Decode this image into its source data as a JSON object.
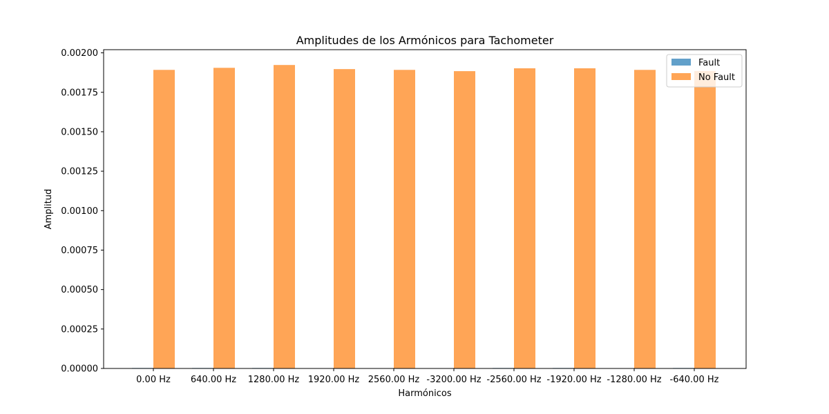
{
  "chart_data": {
    "type": "bar",
    "title": "Amplitudes de los Armónicos para Tachometer",
    "xlabel": "Harmónicos",
    "ylabel": "Amplitud",
    "categories": [
      "0.00 Hz",
      "640.00 Hz",
      "1280.00 Hz",
      "1920.00 Hz",
      "2560.00 Hz",
      "-3200.00 Hz",
      "-2560.00 Hz",
      "-1920.00 Hz",
      "-1280.00 Hz",
      "-640.00 Hz"
    ],
    "series": [
      {
        "name": "Fault",
        "color": "#1f77b4",
        "values": [
          3e-06,
          3e-06,
          3e-06,
          1e-06,
          1e-06,
          5e-07,
          3e-06,
          3e-06,
          1e-06,
          3e-06
        ]
      },
      {
        "name": "No Fault",
        "color": "#ff7f0e",
        "values": [
          0.001892,
          0.001905,
          0.001923,
          0.001897,
          0.001892,
          0.001884,
          0.001902,
          0.001902,
          0.001892,
          0.001885
        ]
      }
    ],
    "ylim": [
      0,
      0.00202
    ],
    "yticks": [
      0.0,
      0.00025,
      0.0005,
      0.00075,
      0.001,
      0.00125,
      0.0015,
      0.00175,
      0.002
    ],
    "ytick_labels": [
      "0.00000",
      "0.00025",
      "0.00050",
      "0.00075",
      "0.00100",
      "0.00125",
      "0.00150",
      "0.00175",
      "0.00200"
    ],
    "grid": false,
    "legend_position": "top-right"
  }
}
